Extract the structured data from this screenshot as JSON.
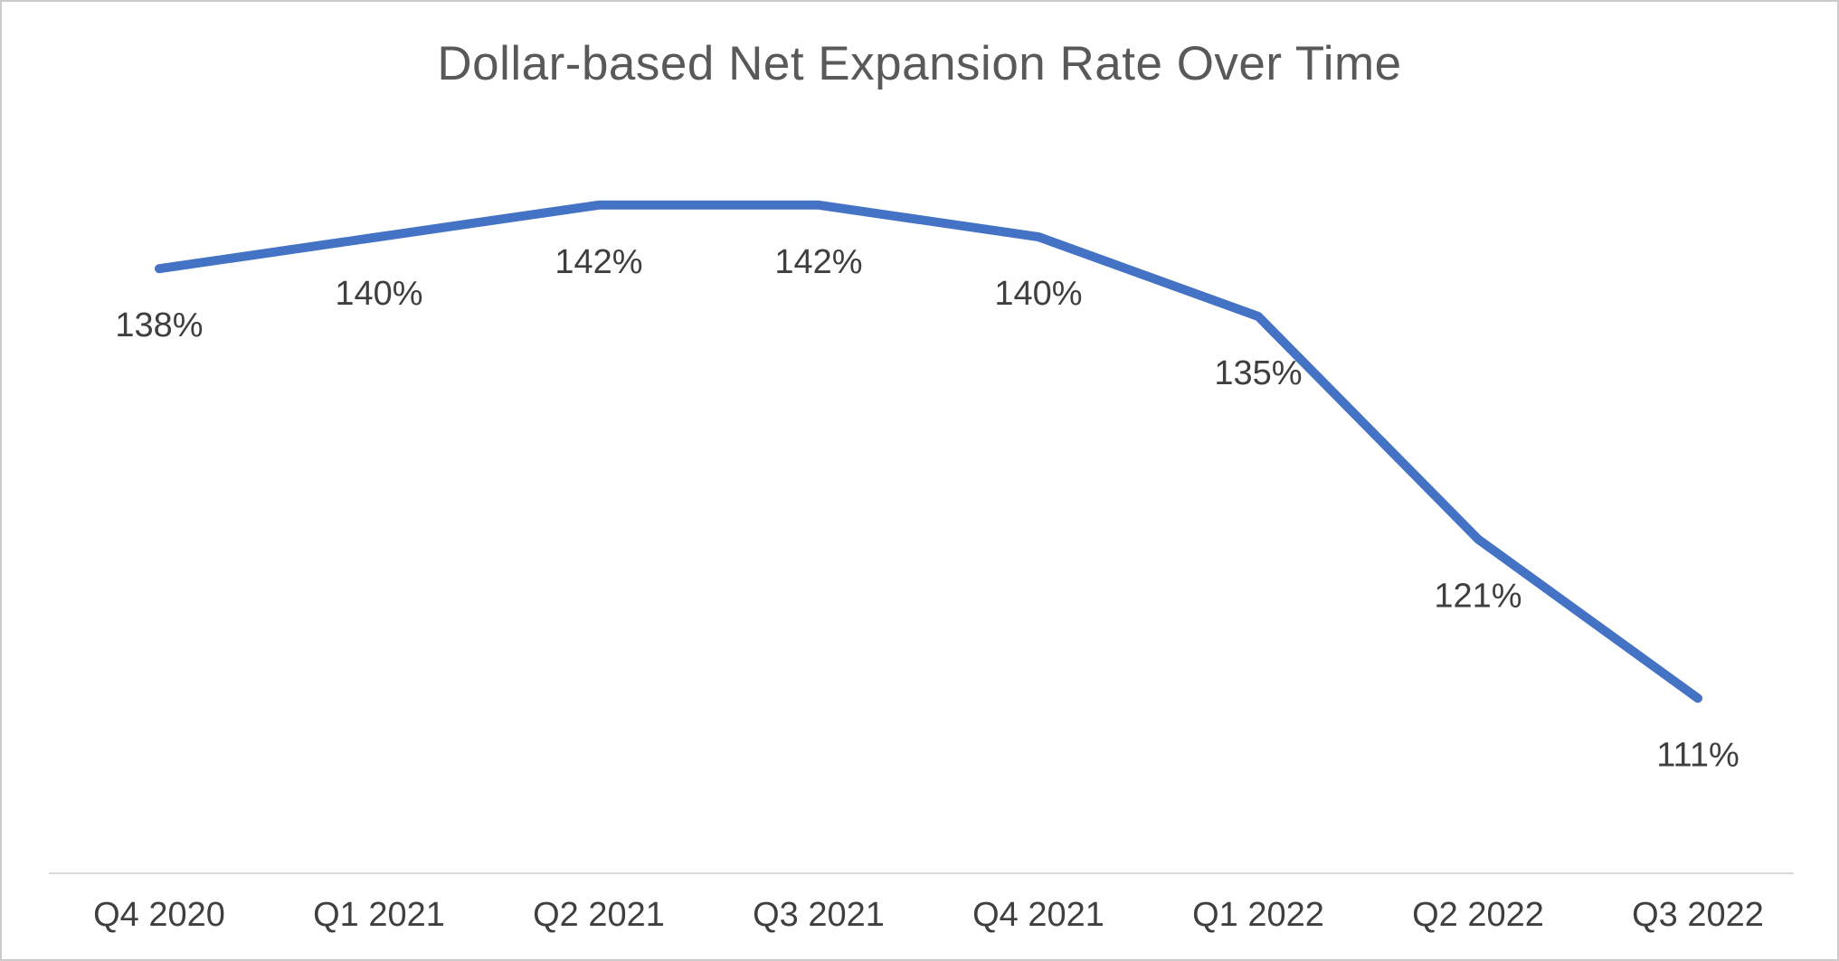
{
  "chart_data": {
    "type": "line",
    "title": "Dollar-based Net Expansion Rate Over Time",
    "categories": [
      "Q4 2020",
      "Q1 2021",
      "Q2 2021",
      "Q3 2021",
      "Q4 2021",
      "Q1 2022",
      "Q2 2022",
      "Q3 2022"
    ],
    "values": [
      138,
      140,
      142,
      142,
      140,
      135,
      121,
      111
    ],
    "data_labels": [
      "138%",
      "140%",
      "142%",
      "142%",
      "140%",
      "135%",
      "121%",
      "111%"
    ],
    "xlabel": "",
    "ylabel": "",
    "ylim": [
      100,
      145
    ],
    "grid": false,
    "legend": false,
    "line_color": "#4472C4",
    "title_color": "#595959",
    "label_color": "#3f3f3f",
    "axis_color": "#d9d9d9"
  }
}
